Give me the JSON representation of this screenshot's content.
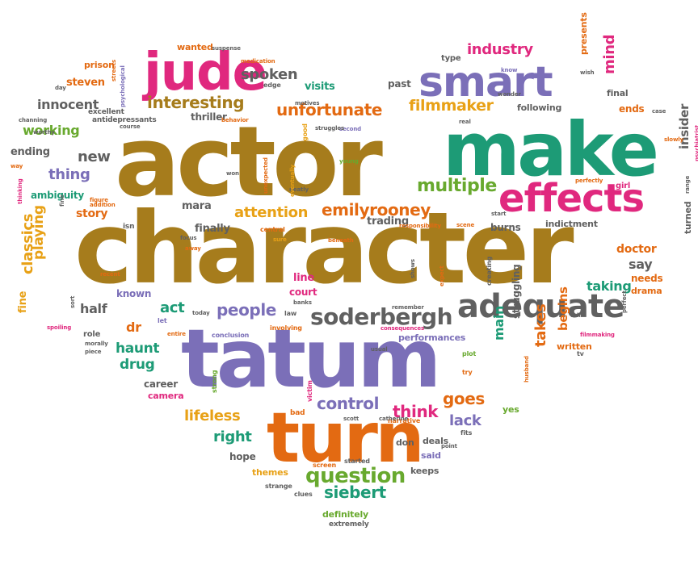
{
  "colors": {
    "brown": "#a67c1c",
    "teal": "#1d9b76",
    "purple": "#7b6fb8",
    "magenta": "#e0287e",
    "orange": "#e36a12",
    "gold": "#e8a116",
    "green": "#68a92e",
    "gray": "#606060"
  },
  "words": [
    {
      "text": "actor",
      "color": "brown",
      "size": 120
    },
    {
      "text": "character",
      "color": "brown",
      "size": 122
    },
    {
      "text": "make",
      "color": "teal",
      "size": 92
    },
    {
      "text": "tatum",
      "color": "purple",
      "size": 100
    },
    {
      "text": "turn",
      "color": "orange",
      "size": 86
    },
    {
      "text": "jude",
      "color": "magenta",
      "size": 64
    },
    {
      "text": "smart",
      "color": "purple",
      "size": 52
    },
    {
      "text": "effects",
      "color": "magenta",
      "size": 48
    },
    {
      "text": "adequate",
      "color": "gray",
      "size": 40
    },
    {
      "text": "soderbergh",
      "color": "gray",
      "size": 28
    },
    {
      "text": "question",
      "color": "green",
      "size": 26
    },
    {
      "text": "interesting",
      "color": "brown",
      "size": 20
    },
    {
      "text": "unfortunate",
      "color": "orange",
      "size": 20
    },
    {
      "text": "filmmaker",
      "color": "gold",
      "size": 19
    },
    {
      "text": "multiple",
      "color": "green",
      "size": 22
    },
    {
      "text": "emilyrooney",
      "color": "orange",
      "size": 20
    },
    {
      "text": "attention",
      "color": "gold",
      "size": 18
    },
    {
      "text": "people",
      "color": "purple",
      "size": 20
    },
    {
      "text": "control",
      "color": "purple",
      "size": 20
    },
    {
      "text": "goes",
      "color": "orange",
      "size": 20
    },
    {
      "text": "think",
      "color": "magenta",
      "size": 20
    },
    {
      "text": "lack",
      "color": "purple",
      "size": 18
    },
    {
      "text": "lifeless",
      "color": "gold",
      "size": 18
    },
    {
      "text": "right",
      "color": "teal",
      "size": 18
    },
    {
      "text": "siebert",
      "color": "teal",
      "size": 20
    },
    {
      "text": "spoken",
      "color": "gray",
      "size": 18
    },
    {
      "text": "industry",
      "color": "magenta",
      "size": 18
    },
    {
      "text": "innocent",
      "color": "gray",
      "size": 16
    },
    {
      "text": "working",
      "color": "green",
      "size": 16
    },
    {
      "text": "new",
      "color": "gray",
      "size": 18
    },
    {
      "text": "thing",
      "color": "purple",
      "size": 18
    },
    {
      "text": "classics",
      "color": "gold",
      "size": 18
    },
    {
      "text": "playing",
      "color": "gold",
      "size": 17
    },
    {
      "text": "story",
      "color": "orange",
      "size": 14
    },
    {
      "text": "half",
      "color": "gray",
      "size": 16
    },
    {
      "text": "act",
      "color": "teal",
      "size": 18
    },
    {
      "text": "haunt",
      "color": "teal",
      "size": 17
    },
    {
      "text": "drug",
      "color": "teal",
      "size": 17
    },
    {
      "text": "dr",
      "color": "orange",
      "size": 16
    },
    {
      "text": "mind",
      "color": "magenta",
      "size": 18
    },
    {
      "text": "insider",
      "color": "gray",
      "size": 15
    },
    {
      "text": "say",
      "color": "gray",
      "size": 16
    },
    {
      "text": "doctor",
      "color": "orange",
      "size": 14
    },
    {
      "text": "taking",
      "color": "teal",
      "size": 16
    },
    {
      "text": "begins",
      "color": "orange",
      "size": 15
    },
    {
      "text": "takes",
      "color": "orange",
      "size": 18
    },
    {
      "text": "main",
      "color": "teal",
      "size": 16
    },
    {
      "text": "struggling",
      "color": "gray",
      "size": 12
    },
    {
      "text": "steven",
      "color": "orange",
      "size": 13
    },
    {
      "text": "visits",
      "color": "teal",
      "size": 13
    },
    {
      "text": "thriller",
      "color": "gray",
      "size": 12
    },
    {
      "text": "past",
      "color": "gray",
      "size": 12
    },
    {
      "text": "following",
      "color": "gray",
      "size": 11
    },
    {
      "text": "ends",
      "color": "orange",
      "size": 12
    },
    {
      "text": "final",
      "color": "gray",
      "size": 11
    },
    {
      "text": "presents",
      "color": "orange",
      "size": 11
    },
    {
      "text": "wanted",
      "color": "orange",
      "size": 11
    },
    {
      "text": "prison",
      "color": "orange",
      "size": 11
    },
    {
      "text": "type",
      "color": "gray",
      "size": 10
    },
    {
      "text": "ending",
      "color": "gray",
      "size": 13
    },
    {
      "text": "ambiguity",
      "color": "teal",
      "size": 12
    },
    {
      "text": "mara",
      "color": "gray",
      "size": 13
    },
    {
      "text": "finally",
      "color": "gray",
      "size": 13
    },
    {
      "text": "trading",
      "color": "gray",
      "size": 13
    },
    {
      "text": "burns",
      "color": "gray",
      "size": 12
    },
    {
      "text": "indictment",
      "color": "gray",
      "size": 11
    },
    {
      "text": "needs",
      "color": "orange",
      "size": 12
    },
    {
      "text": "drama",
      "color": "orange",
      "size": 11
    },
    {
      "text": "turned",
      "color": "gray",
      "size": 11
    },
    {
      "text": "fine",
      "color": "gold",
      "size": 13
    },
    {
      "text": "known",
      "color": "purple",
      "size": 12
    },
    {
      "text": "line",
      "color": "magenta",
      "size": 13
    },
    {
      "text": "court",
      "color": "magenta",
      "size": 12
    },
    {
      "text": "career",
      "color": "gray",
      "size": 12
    },
    {
      "text": "camera",
      "color": "magenta",
      "size": 11
    },
    {
      "text": "hope",
      "color": "gray",
      "size": 12
    },
    {
      "text": "performances",
      "color": "purple",
      "size": 11
    },
    {
      "text": "written",
      "color": "orange",
      "size": 11
    },
    {
      "text": "yes",
      "color": "green",
      "size": 11
    },
    {
      "text": "keeps",
      "color": "gray",
      "size": 11
    },
    {
      "text": "said",
      "color": "purple",
      "size": 11
    },
    {
      "text": "don",
      "color": "gray",
      "size": 11
    },
    {
      "text": "deals",
      "color": "gray",
      "size": 11
    },
    {
      "text": "definitely",
      "color": "green",
      "size": 11
    },
    {
      "text": "themes",
      "color": "gold",
      "size": 11
    },
    {
      "text": "extremely",
      "color": "gray",
      "size": 9
    },
    {
      "text": "strange",
      "color": "gray",
      "size": 8
    },
    {
      "text": "clues",
      "color": "gray",
      "size": 8
    },
    {
      "text": "screen",
      "color": "orange",
      "size": 8
    },
    {
      "text": "started",
      "color": "gray",
      "size": 8
    },
    {
      "text": "narrative",
      "color": "orange",
      "size": 8
    },
    {
      "text": "fits",
      "color": "gray",
      "size": 8
    },
    {
      "text": "point",
      "color": "gray",
      "size": 7
    },
    {
      "text": "scott",
      "color": "gray",
      "size": 7
    },
    {
      "text": "catherine",
      "color": "gray",
      "size": 7
    },
    {
      "text": "bad",
      "color": "orange",
      "size": 9
    },
    {
      "text": "victim",
      "color": "magenta",
      "size": 8
    },
    {
      "text": "strong",
      "color": "green",
      "size": 8
    },
    {
      "text": "try",
      "color": "orange",
      "size": 8
    },
    {
      "text": "plot",
      "color": "green",
      "size": 8
    },
    {
      "text": "usual",
      "color": "gray",
      "size": 7
    },
    {
      "text": "consequences",
      "color": "magenta",
      "size": 7
    },
    {
      "text": "remember",
      "color": "gray",
      "size": 7
    },
    {
      "text": "involving",
      "color": "orange",
      "size": 8
    },
    {
      "text": "conclusion",
      "color": "purple",
      "size": 8
    },
    {
      "text": "law",
      "color": "gray",
      "size": 8
    },
    {
      "text": "banks",
      "color": "gray",
      "size": 7
    },
    {
      "text": "today",
      "color": "gray",
      "size": 7
    },
    {
      "text": "let",
      "color": "purple",
      "size": 8
    },
    {
      "text": "entire",
      "color": "orange",
      "size": 7
    },
    {
      "text": "role",
      "color": "gray",
      "size": 10
    },
    {
      "text": "sort",
      "color": "gray",
      "size": 7
    },
    {
      "text": "morally",
      "color": "gray",
      "size": 7
    },
    {
      "text": "piece",
      "color": "gray",
      "size": 7
    },
    {
      "text": "spoiling",
      "color": "magenta",
      "size": 7
    },
    {
      "text": "recent",
      "color": "orange",
      "size": 7
    },
    {
      "text": "fine",
      "color": "gray",
      "size": 7
    },
    {
      "text": "addition",
      "color": "orange",
      "size": 7
    },
    {
      "text": "figure",
      "color": "orange",
      "size": 7
    },
    {
      "text": "isn",
      "color": "gray",
      "size": 9
    },
    {
      "text": "focus",
      "color": "gray",
      "size": 7
    },
    {
      "text": "away",
      "color": "orange",
      "size": 7
    },
    {
      "text": "central",
      "color": "orange",
      "size": 8
    },
    {
      "text": "sure",
      "color": "gold",
      "size": 7
    },
    {
      "text": "beneath",
      "color": "orange",
      "size": 7
    },
    {
      "text": "responsibility",
      "color": "orange",
      "size": 7
    },
    {
      "text": "scene",
      "color": "orange",
      "size": 7
    },
    {
      "text": "start",
      "color": "gray",
      "size": 7
    },
    {
      "text": "perfectly",
      "color": "orange",
      "size": 7
    },
    {
      "text": "girl",
      "color": "magenta",
      "size": 10
    },
    {
      "text": "neatly",
      "color": "gray",
      "size": 7
    },
    {
      "text": "eventually",
      "color": "gold",
      "size": 7
    },
    {
      "text": "unexpected",
      "color": "orange",
      "size": 7
    },
    {
      "text": "won",
      "color": "gray",
      "size": 7
    },
    {
      "text": "young",
      "color": "green",
      "size": 7
    },
    {
      "text": "good",
      "color": "gold",
      "size": 8
    },
    {
      "text": "second",
      "color": "purple",
      "size": 7
    },
    {
      "text": "struggles",
      "color": "gray",
      "size": 7
    },
    {
      "text": "motives",
      "color": "gray",
      "size": 7
    },
    {
      "text": "real",
      "color": "gray",
      "size": 7
    },
    {
      "text": "behavior",
      "color": "orange",
      "size": 7
    },
    {
      "text": "course",
      "color": "gray",
      "size": 7
    },
    {
      "text": "antidepressants",
      "color": "gray",
      "size": 9
    },
    {
      "text": "excellent",
      "color": "gray",
      "size": 9
    },
    {
      "text": "channing",
      "color": "gray",
      "size": 7
    },
    {
      "text": "worthy",
      "color": "gray",
      "size": 7
    },
    {
      "text": "streets",
      "color": "orange",
      "size": 7
    },
    {
      "text": "day",
      "color": "gray",
      "size": 7
    },
    {
      "text": "psychological",
      "color": "purple",
      "size": 7
    },
    {
      "text": "suspense",
      "color": "gray",
      "size": 7
    },
    {
      "text": "medication",
      "color": "orange",
      "size": 7
    },
    {
      "text": "edge",
      "color": "gray",
      "size": 8
    },
    {
      "text": "know",
      "color": "purple",
      "size": 7
    },
    {
      "text": "wonder",
      "color": "gray",
      "size": 7
    },
    {
      "text": "wish",
      "color": "gray",
      "size": 7
    },
    {
      "text": "case",
      "color": "gray",
      "size": 7
    },
    {
      "text": "slowly",
      "color": "orange",
      "size": 7
    },
    {
      "text": "psychiatrist",
      "color": "magenta",
      "size": 7
    },
    {
      "text": "range",
      "color": "gray",
      "size": 7
    },
    {
      "text": "tell",
      "color": "gray",
      "size": 7
    },
    {
      "text": "perfect",
      "color": "gray",
      "size": 7
    },
    {
      "text": "filmmaking",
      "color": "magenta",
      "size": 7
    },
    {
      "text": "tv",
      "color": "gray",
      "size": 8
    },
    {
      "text": "husband",
      "color": "orange",
      "size": 7
    },
    {
      "text": "creating",
      "color": "gray",
      "size": 8
    },
    {
      "text": "expect",
      "color": "orange",
      "size": 7
    },
    {
      "text": "shows",
      "color": "gray",
      "size": 7
    },
    {
      "text": "thinking",
      "color": "magenta",
      "size": 7
    },
    {
      "text": "way",
      "color": "orange",
      "size": 7
    }
  ]
}
